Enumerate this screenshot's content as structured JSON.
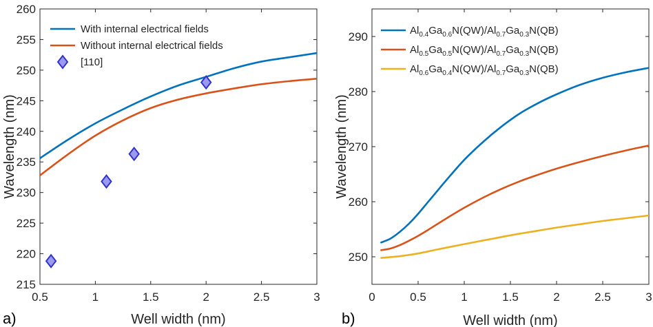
{
  "chart_data": [
    {
      "panel_label": "a)",
      "type": "line",
      "xlabel": "Well width (nm)",
      "ylabel": "Wavelength (nm)",
      "xlim": [
        0.5,
        3
      ],
      "ylim": [
        215,
        260
      ],
      "xticks": [
        "0.5",
        "1",
        "1.5",
        "2",
        "2.5",
        "3"
      ],
      "yticks": [
        "215",
        "220",
        "225",
        "230",
        "235",
        "240",
        "245",
        "250",
        "255",
        "260"
      ],
      "legend_position": "top-left",
      "series": [
        {
          "name": "With internal electrical fields",
          "color": "#0072BD",
          "mark": "line",
          "x": [
            0.5,
            0.75,
            1.0,
            1.25,
            1.5,
            1.75,
            2.0,
            2.25,
            2.5,
            2.75,
            3.0
          ],
          "y": [
            235.6,
            238.6,
            241.3,
            243.6,
            245.7,
            247.5,
            248.9,
            250.3,
            251.4,
            252.1,
            252.8
          ]
        },
        {
          "name": "Without internal electrical fields",
          "color": "#D95319",
          "mark": "line",
          "x": [
            0.5,
            0.75,
            1.0,
            1.25,
            1.5,
            1.75,
            2.0,
            2.25,
            2.5,
            2.75,
            3.0
          ],
          "y": [
            232.8,
            236.2,
            239.3,
            241.8,
            243.8,
            245.2,
            246.2,
            247.0,
            247.7,
            248.2,
            248.6
          ]
        },
        {
          "name": "[110]",
          "color": "#9A9AF0",
          "edge_color": "#3333CC",
          "mark": "diamond",
          "x": [
            0.6,
            1.1,
            1.35,
            2.0
          ],
          "y": [
            218.8,
            231.8,
            236.3,
            248.0
          ]
        }
      ]
    },
    {
      "panel_label": "b)",
      "type": "line",
      "xlabel": "Well width (nm)",
      "ylabel": "Wavelength (nm)",
      "xlim": [
        0,
        3
      ],
      "ylim": [
        245,
        295
      ],
      "xticks": [
        "0",
        "0.5",
        "1",
        "1.5",
        "2",
        "2.5",
        "3"
      ],
      "yticks": [
        "250",
        "260",
        "270",
        "280",
        "290"
      ],
      "legend_position": "top-left",
      "series": [
        {
          "name": "Al0.4Ga0.6N(QW)/Al0.7Ga0.3N(QB)",
          "legend_parts": [
            [
              "Al",
              false
            ],
            [
              "0.4",
              true
            ],
            [
              "Ga",
              false
            ],
            [
              "0.6",
              true
            ],
            [
              "N(QW)/Al",
              false
            ],
            [
              "0.7",
              true
            ],
            [
              "Ga",
              false
            ],
            [
              "0.3",
              true
            ],
            [
              "N(QB)",
              false
            ]
          ],
          "color": "#0072BD",
          "mark": "line",
          "x": [
            0.1,
            0.2,
            0.3,
            0.4,
            0.5,
            0.6,
            0.7,
            0.8,
            1.0,
            1.2,
            1.4,
            1.6,
            1.8,
            2.0,
            2.25,
            2.5,
            2.75,
            3.0
          ],
          "y": [
            252.6,
            253.3,
            254.5,
            256.0,
            257.8,
            259.8,
            261.8,
            263.8,
            267.6,
            270.8,
            273.6,
            276.0,
            277.9,
            279.5,
            281.2,
            282.5,
            283.5,
            284.3
          ]
        },
        {
          "name": "Al0.5Ga0.5N(QW)/Al0.7Ga0.3N(QB)",
          "legend_parts": [
            [
              "Al",
              false
            ],
            [
              "0.5",
              true
            ],
            [
              "Ga",
              false
            ],
            [
              "0.5",
              true
            ],
            [
              "N(QW)/Al",
              false
            ],
            [
              "0.7",
              true
            ],
            [
              "Ga",
              false
            ],
            [
              "0.3",
              true
            ],
            [
              "N(QB)",
              false
            ]
          ],
          "color": "#D95319",
          "mark": "line",
          "x": [
            0.1,
            0.2,
            0.3,
            0.4,
            0.5,
            0.6,
            0.8,
            1.0,
            1.2,
            1.4,
            1.6,
            1.8,
            2.0,
            2.25,
            2.5,
            2.75,
            3.0
          ],
          "y": [
            251.2,
            251.5,
            252.1,
            252.9,
            253.8,
            254.8,
            256.9,
            258.9,
            260.7,
            262.3,
            263.7,
            264.9,
            266.0,
            267.2,
            268.3,
            269.3,
            270.2
          ]
        },
        {
          "name": "Al0.6Ga0.4N(QW)/Al0.7Ga0.3N(QB)",
          "legend_parts": [
            [
              "Al",
              false
            ],
            [
              "0.6",
              true
            ],
            [
              "Ga",
              false
            ],
            [
              "0.4",
              true
            ],
            [
              "N(QW)/Al",
              false
            ],
            [
              "0.7",
              true
            ],
            [
              "Ga",
              false
            ],
            [
              "0.3",
              true
            ],
            [
              "N(QB)",
              false
            ]
          ],
          "color": "#EDB120",
          "mark": "line",
          "x": [
            0.1,
            0.3,
            0.5,
            0.7,
            1.0,
            1.25,
            1.5,
            1.75,
            2.0,
            2.25,
            2.5,
            2.75,
            3.0
          ],
          "y": [
            249.8,
            250.1,
            250.6,
            251.3,
            252.3,
            253.1,
            253.9,
            254.6,
            255.3,
            255.9,
            256.5,
            257.0,
            257.5
          ]
        }
      ]
    }
  ]
}
